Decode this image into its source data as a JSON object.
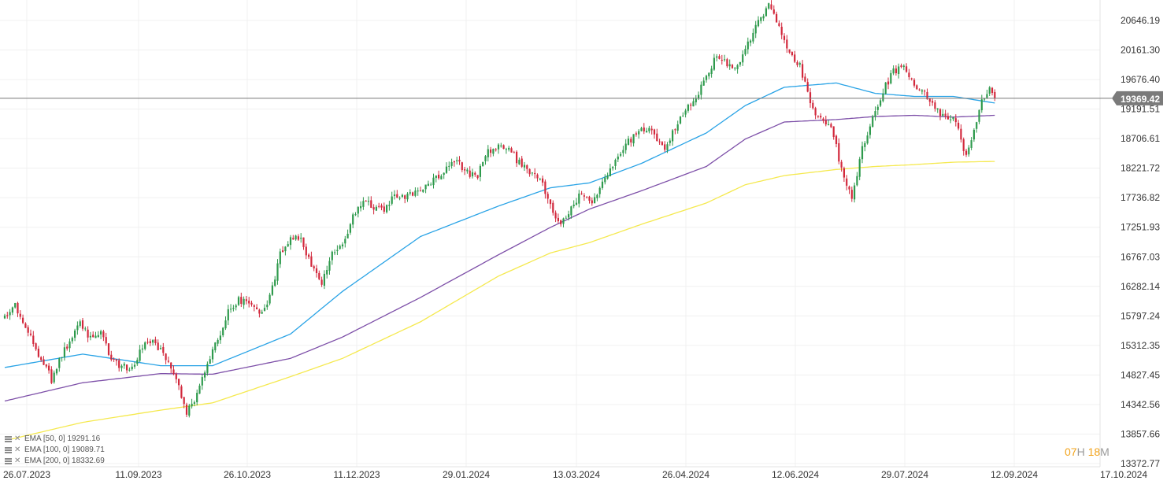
{
  "chart_data": {
    "type": "candlestick",
    "x_tick_labels": [
      "26.07.2023",
      "11.09.2023",
      "26.10.2023",
      "11.12.2023",
      "29.01.2024",
      "13.03.2024",
      "26.04.2024",
      "12.06.2024",
      "29.07.2024",
      "12.09.2024",
      "17.10.2024"
    ],
    "y_tick_labels": [
      "20646.19",
      "20161.30",
      "19676.40",
      "19191.51",
      "18706.61",
      "18221.72",
      "17736.82",
      "17251.93",
      "16767.03",
      "16282.14",
      "15797.24",
      "15312.35",
      "14827.45",
      "14342.56",
      "13857.66",
      "13372.77"
    ],
    "ylim": [
      13372.77,
      21005
    ],
    "current_price": {
      "label": "19369.42",
      "value": 19369.42
    },
    "grid": true,
    "colors": {
      "up": "#2e9a4c",
      "down": "#d2283c",
      "ema50": "#29a3e6",
      "ema100": "#7d4fa8",
      "ema200": "#f5e94f",
      "price_line": "#777777",
      "price_tag": "#7a7a7a"
    },
    "price_anchors": [
      [
        0,
        15750
      ],
      [
        4,
        15950
      ],
      [
        8,
        15600
      ],
      [
        12,
        15250
      ],
      [
        15,
        15050
      ],
      [
        18,
        14750
      ],
      [
        21,
        15050
      ],
      [
        25,
        15400
      ],
      [
        29,
        15650
      ],
      [
        33,
        15450
      ],
      [
        37,
        15500
      ],
      [
        41,
        15100
      ],
      [
        45,
        14950
      ],
      [
        49,
        14950
      ],
      [
        53,
        15300
      ],
      [
        57,
        15400
      ],
      [
        62,
        15100
      ],
      [
        66,
        14750
      ],
      [
        70,
        14200
      ],
      [
        74,
        14500
      ],
      [
        78,
        15050
      ],
      [
        82,
        15400
      ],
      [
        86,
        15900
      ],
      [
        90,
        16050
      ],
      [
        94,
        16050
      ],
      [
        98,
        15800
      ],
      [
        102,
        16100
      ],
      [
        106,
        16800
      ],
      [
        110,
        17050
      ],
      [
        114,
        17100
      ],
      [
        118,
        16600
      ],
      [
        122,
        16350
      ],
      [
        126,
        16800
      ],
      [
        130,
        16950
      ],
      [
        134,
        17450
      ],
      [
        138,
        17700
      ],
      [
        142,
        17600
      ],
      [
        146,
        17500
      ],
      [
        150,
        17800
      ],
      [
        154,
        17750
      ],
      [
        158,
        17800
      ],
      [
        162,
        17950
      ],
      [
        166,
        18050
      ],
      [
        170,
        18200
      ],
      [
        174,
        18350
      ],
      [
        178,
        18150
      ],
      [
        182,
        18100
      ],
      [
        186,
        18500
      ],
      [
        190,
        18600
      ],
      [
        194,
        18550
      ],
      [
        198,
        18300
      ],
      [
        202,
        18150
      ],
      [
        206,
        18050
      ],
      [
        210,
        17600
      ],
      [
        214,
        17250
      ],
      [
        218,
        17600
      ],
      [
        222,
        17800
      ],
      [
        226,
        17600
      ],
      [
        230,
        18050
      ],
      [
        234,
        18250
      ],
      [
        238,
        18550
      ],
      [
        242,
        18750
      ],
      [
        246,
        18850
      ],
      [
        250,
        18800
      ],
      [
        254,
        18500
      ],
      [
        258,
        18900
      ],
      [
        262,
        19150
      ],
      [
        266,
        19400
      ],
      [
        270,
        19700
      ],
      [
        274,
        20100
      ],
      [
        278,
        19900
      ],
      [
        282,
        19900
      ],
      [
        286,
        20300
      ],
      [
        290,
        20600
      ],
      [
        294,
        20900
      ],
      [
        298,
        20500
      ],
      [
        302,
        20150
      ],
      [
        306,
        19900
      ],
      [
        310,
        19300
      ],
      [
        314,
        19000
      ],
      [
        318,
        18950
      ],
      [
        322,
        18200
      ],
      [
        326,
        17750
      ],
      [
        330,
        18550
      ],
      [
        334,
        19050
      ],
      [
        338,
        19500
      ],
      [
        342,
        19800
      ],
      [
        346,
        19900
      ],
      [
        350,
        19600
      ],
      [
        354,
        19450
      ],
      [
        358,
        19200
      ],
      [
        362,
        19050
      ],
      [
        366,
        19000
      ],
      [
        370,
        18400
      ],
      [
        373,
        18800
      ],
      [
        376,
        19350
      ],
      [
        379,
        19520
      ],
      [
        381,
        19369
      ]
    ],
    "ema_anchors": {
      "ema50": [
        [
          0,
          14950
        ],
        [
          30,
          15170
        ],
        [
          60,
          14980
        ],
        [
          80,
          14980
        ],
        [
          110,
          15500
        ],
        [
          130,
          16200
        ],
        [
          160,
          17100
        ],
        [
          190,
          17600
        ],
        [
          210,
          17900
        ],
        [
          225,
          17980
        ],
        [
          245,
          18300
        ],
        [
          270,
          18800
        ],
        [
          285,
          19250
        ],
        [
          300,
          19550
        ],
        [
          320,
          19620
        ],
        [
          335,
          19450
        ],
        [
          350,
          19400
        ],
        [
          365,
          19400
        ],
        [
          381,
          19291.16
        ]
      ],
      "ema100": [
        [
          0,
          14400
        ],
        [
          30,
          14700
        ],
        [
          60,
          14850
        ],
        [
          80,
          14840
        ],
        [
          110,
          15100
        ],
        [
          130,
          15450
        ],
        [
          160,
          16100
        ],
        [
          190,
          16800
        ],
        [
          210,
          17250
        ],
        [
          225,
          17550
        ],
        [
          245,
          17850
        ],
        [
          270,
          18250
        ],
        [
          285,
          18700
        ],
        [
          300,
          18980
        ],
        [
          320,
          19020
        ],
        [
          335,
          19070
        ],
        [
          350,
          19090
        ],
        [
          365,
          19060
        ],
        [
          381,
          19089.71
        ]
      ],
      "ema200": [
        [
          0,
          13750
        ],
        [
          30,
          14050
        ],
        [
          60,
          14250
        ],
        [
          80,
          14370
        ],
        [
          110,
          14800
        ],
        [
          130,
          15100
        ],
        [
          160,
          15700
        ],
        [
          190,
          16450
        ],
        [
          210,
          16830
        ],
        [
          225,
          17000
        ],
        [
          245,
          17300
        ],
        [
          270,
          17650
        ],
        [
          285,
          17950
        ],
        [
          300,
          18100
        ],
        [
          320,
          18200
        ],
        [
          335,
          18250
        ],
        [
          350,
          18280
        ],
        [
          365,
          18320
        ],
        [
          381,
          18332.69
        ]
      ]
    },
    "candle_count": 382,
    "seed": 20240912
  },
  "legend": {
    "items": [
      {
        "label": "EMA [50, 0]",
        "value": "19291.16"
      },
      {
        "label": "EMA [100, 0]",
        "value": "19089.71"
      },
      {
        "label": "EMA [200, 0]",
        "value": "18332.69"
      }
    ]
  },
  "countdown": {
    "hours": "07",
    "hours_unit": "H",
    "minutes": "18",
    "minutes_unit": "M"
  }
}
